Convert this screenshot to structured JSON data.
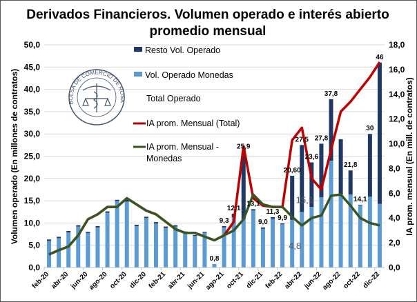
{
  "chart_data": {
    "type": "bar",
    "title": "Derivados Financieros. Volumen operado e interés abierto promedio mensual",
    "title_lines": [
      "Derivados Financieros. Volumen operado e interés abierto",
      "promedio mensual"
    ],
    "ylabel": "Volumen operado (En millones de contratos)",
    "y2label": "IA prom. mensual (En mill. de contratos)",
    "ylim": [
      0,
      50
    ],
    "y2lim": [
      0,
      18
    ],
    "yticks": [
      "0,0",
      "5,0",
      "10,0",
      "15,0",
      "20,0",
      "25,0",
      "30,0",
      "35,0",
      "40,0",
      "45,0",
      "50,0"
    ],
    "y2ticks": [
      "0,0",
      "2,0",
      "4,0",
      "6,0",
      "8,0",
      "10,0",
      "12,0",
      "14,0",
      "16,0",
      "18,0"
    ],
    "grid": true,
    "legend_placement": "top-center",
    "categories": [
      "feb-20",
      "mar-20",
      "abr-20",
      "may-20",
      "jun-20",
      "jul-20",
      "ago-20",
      "sep-20",
      "oct-20",
      "nov-20",
      "dic-20",
      "ene-21",
      "feb-21",
      "mar-21",
      "abr-21",
      "may-21",
      "jun-21",
      "jul-21",
      "ago-21",
      "sep-21",
      "oct-21",
      "nov-21",
      "dic-21",
      "ene-22",
      "feb-22",
      "mar-22",
      "abr-22",
      "may-22",
      "jun-22",
      "jul-22",
      "ago-22",
      "sep-22",
      "oct-22",
      "nov-22",
      "dic-22"
    ],
    "xtick_labels": [
      "feb-20",
      "abr-20",
      "jun-20",
      "ago-20",
      "oct-20",
      "dic-20",
      "feb-21",
      "abr-21",
      "jun-21",
      "ago-21",
      "oct-21",
      "dic-21",
      "feb-22",
      "abr-22",
      "jun-22",
      "ago-22",
      "oct-22",
      "dic-22"
    ],
    "series": [
      {
        "name": "Vol. Operado Monedas",
        "kind": "bar",
        "axis": "left",
        "color": "#5b9bd5",
        "values": [
          6.0,
          6.6,
          7.9,
          9.2,
          7.7,
          9.0,
          12.3,
          14.9,
          14.8,
          9.3,
          11.1,
          9.9,
          8.9,
          9.2,
          7.9,
          7.1,
          7.8,
          0.8,
          9.0,
          11.3,
          10.9,
          12.8,
          8.7,
          11.0,
          9.7,
          10.7,
          12.5,
          13.6,
          15.8,
          24.0,
          16.4,
          16.4,
          14.0,
          15.9,
          14.3
        ]
      },
      {
        "name": "Resto Vol. Operado",
        "kind": "bar",
        "axis": "left",
        "color": "#1f3864",
        "values": [
          0.3,
          0.3,
          0.3,
          0.3,
          0.3,
          0.3,
          0.3,
          0.3,
          0.4,
          0.3,
          0.3,
          0.3,
          0.3,
          0.3,
          0.2,
          0.2,
          0.2,
          0.0,
          0.3,
          0.8,
          15.0,
          0.3,
          0.3,
          0.3,
          0.2,
          9.9,
          15.0,
          10.0,
          12.0,
          13.8,
          12.4,
          5.4,
          0.1,
          14.1,
          31.7
        ]
      },
      {
        "name": "Total Operado",
        "kind": "label",
        "axis": "left",
        "values": [
          6.3,
          6.9,
          8.2,
          9.5,
          8.0,
          9.3,
          12.6,
          15.2,
          15.2,
          9.6,
          11.4,
          10.2,
          9.2,
          9.5,
          8.1,
          7.3,
          8.0,
          0.8,
          9.3,
          12.1,
          25.9,
          13.1,
          9.0,
          11.3,
          9.9,
          20.6,
          27.5,
          23.6,
          27.8,
          37.8,
          28.8,
          21.8,
          14.1,
          30.0,
          46.0
        ]
      },
      {
        "name": "IA prom. Mensual (Total)",
        "kind": "line",
        "axis": "right",
        "color": "#c00000",
        "values": [
          1.06,
          1.4,
          1.7,
          2.6,
          3.9,
          4.3,
          4.9,
          4.9,
          5.6,
          5.1,
          4.6,
          4.3,
          3.7,
          3.1,
          2.8,
          2.8,
          2.5,
          2.2,
          2.6,
          3.7,
          9.8,
          5.6,
          5.0,
          4.9,
          4.9,
          10.3,
          11.3,
          7.2,
          6.3,
          9.5,
          12.6,
          13.4,
          14.4,
          15.4,
          16.6
        ]
      },
      {
        "name": "IA prom. Mensual - Monedas",
        "kind": "line",
        "axis": "right",
        "color": "#375623",
        "values": [
          1.06,
          1.4,
          1.7,
          2.6,
          3.9,
          4.3,
          4.9,
          4.9,
          5.6,
          5.1,
          4.6,
          4.3,
          3.7,
          3.1,
          2.8,
          2.8,
          2.5,
          2.2,
          2.6,
          3.0,
          3.9,
          5.9,
          5.1,
          4.9,
          4.9,
          4.1,
          3.4,
          4.0,
          4.2,
          5.8,
          5.9,
          5.0,
          4.0,
          3.6,
          3.4
        ]
      }
    ],
    "data_labels": [
      {
        "category": "jul-21",
        "text": "0,8"
      },
      {
        "category": "ago-21",
        "text": "9,3"
      },
      {
        "category": "sep-21",
        "text": "12,1"
      },
      {
        "category": "oct-21",
        "text": "25,9"
      },
      {
        "category": "nov-21",
        "text": "13,1"
      },
      {
        "category": "dic-21",
        "text": "9,0"
      },
      {
        "category": "ene-22",
        "text": "11,3"
      },
      {
        "category": "feb-22",
        "text": "9,9"
      },
      {
        "category": "mar-22",
        "text": "20,60"
      },
      {
        "category": "abr-22",
        "text": "27,5"
      },
      {
        "category": "may-22",
        "text": "23,6"
      },
      {
        "category": "jun-22",
        "text": "27,8"
      },
      {
        "category": "jul-22",
        "text": "37,8"
      },
      {
        "category": "sep-22",
        "text": "21,8"
      },
      {
        "category": "oct-22",
        "text": "14,1"
      },
      {
        "category": "nov-22",
        "text": "30"
      },
      {
        "category": "dic-22",
        "text": "46"
      }
    ],
    "annotations": [
      {
        "category": "abr-22",
        "value": 15.1,
        "text": "15,1"
      },
      {
        "category": "mar-22",
        "value": 4.8,
        "text": "4,8"
      }
    ],
    "legend": [
      "Resto Vol. Operado",
      "Vol. Operado Monedas",
      "Total Operado",
      "IA prom. Mensual (Total)",
      "IA prom. Mensual -",
      "Monedas"
    ],
    "logo_text": "BOLSA DE COMERCIO DE ROSARIO"
  }
}
